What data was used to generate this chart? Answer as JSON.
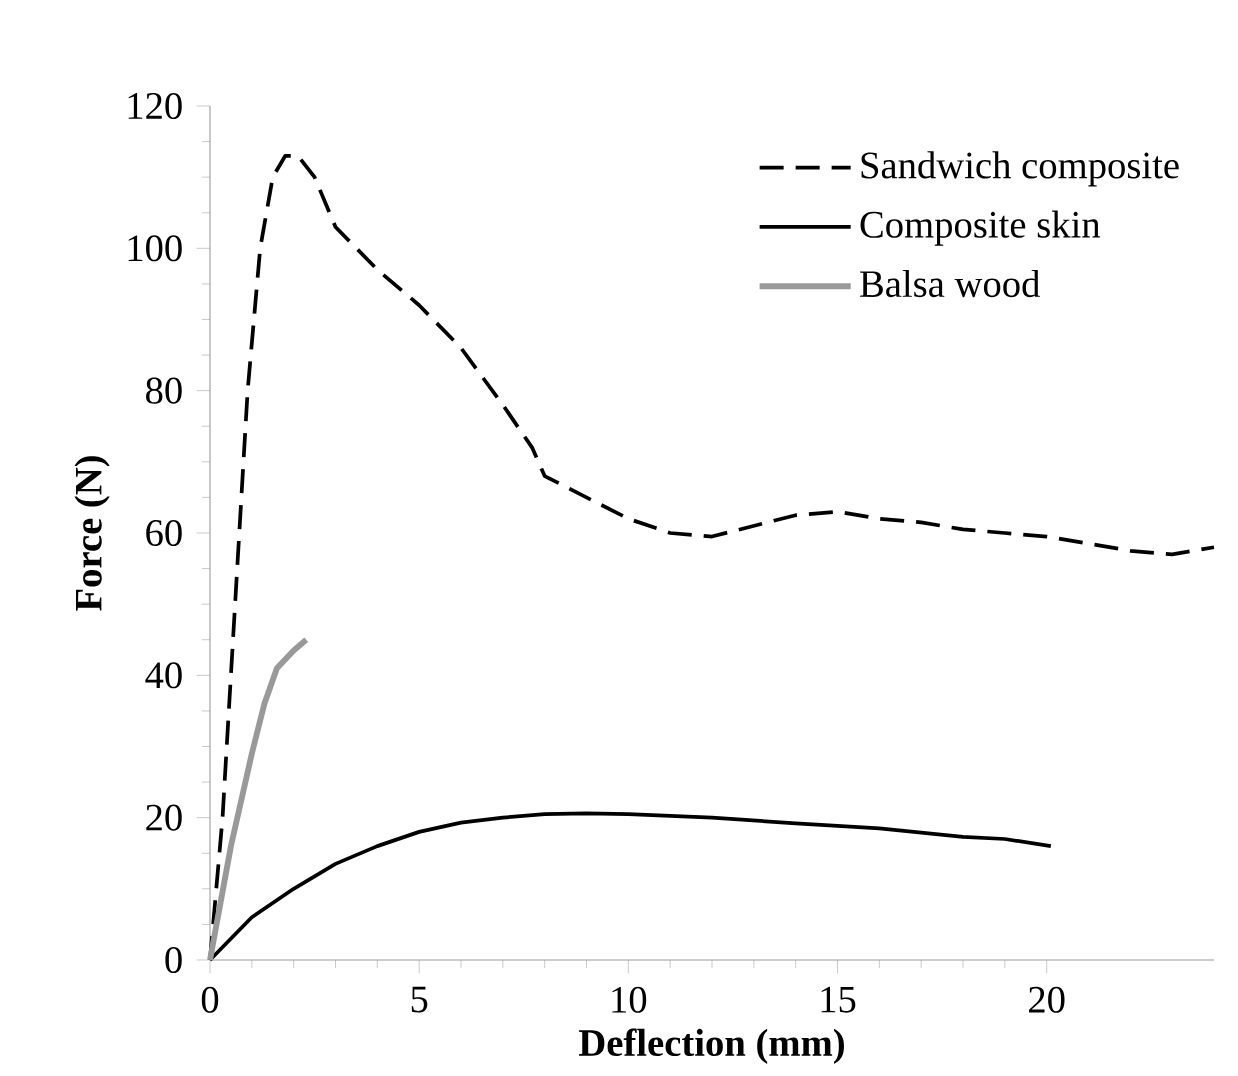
{
  "chart_data": {
    "type": "line",
    "xlabel": "Deflection (mm)",
    "ylabel": "Force (N)",
    "xlim": [
      0,
      24
    ],
    "ylim": [
      0,
      120
    ],
    "xticks": [
      0,
      5,
      10,
      15,
      20
    ],
    "yticks": [
      0,
      20,
      40,
      60,
      80,
      100,
      120
    ],
    "grid": false,
    "legend": "top right",
    "series": [
      {
        "name": "Sandwich composite",
        "color": "#000000",
        "line_style": "dashed",
        "x": [
          0,
          0.3,
          0.6,
          0.9,
          1.2,
          1.5,
          1.8,
          2.1,
          2.5,
          3,
          4,
          5,
          6,
          7,
          7.7,
          8,
          9,
          10,
          11,
          12,
          13,
          14,
          15,
          16,
          17,
          18,
          19,
          20,
          21,
          22,
          23,
          24
        ],
        "values": [
          0,
          20,
          50,
          80,
          100,
          110,
          113,
          113,
          110,
          103,
          97,
          92,
          86,
          78,
          72,
          68,
          65,
          62,
          60,
          59.5,
          61,
          62.5,
          63,
          62,
          61.5,
          60.5,
          60,
          59.5,
          58.5,
          57.5,
          57,
          58
        ]
      },
      {
        "name": "Composite skin",
        "color": "#000000",
        "line_style": "solid",
        "x": [
          0,
          1,
          2,
          3,
          4,
          5,
          6,
          7,
          8,
          9,
          10,
          12,
          14,
          16,
          18,
          19,
          20.1
        ],
        "values": [
          0,
          6,
          10,
          13.5,
          16,
          18,
          19.3,
          20,
          20.5,
          20.6,
          20.5,
          20,
          19.2,
          18.5,
          17.3,
          17,
          16
        ]
      },
      {
        "name": "Balsa wood",
        "color": "#999999",
        "line_style": "solid",
        "x": [
          0,
          0.5,
          1,
          1.3,
          1.6,
          2,
          2.3
        ],
        "values": [
          0,
          16,
          29,
          36,
          41,
          43.5,
          45
        ]
      }
    ]
  }
}
